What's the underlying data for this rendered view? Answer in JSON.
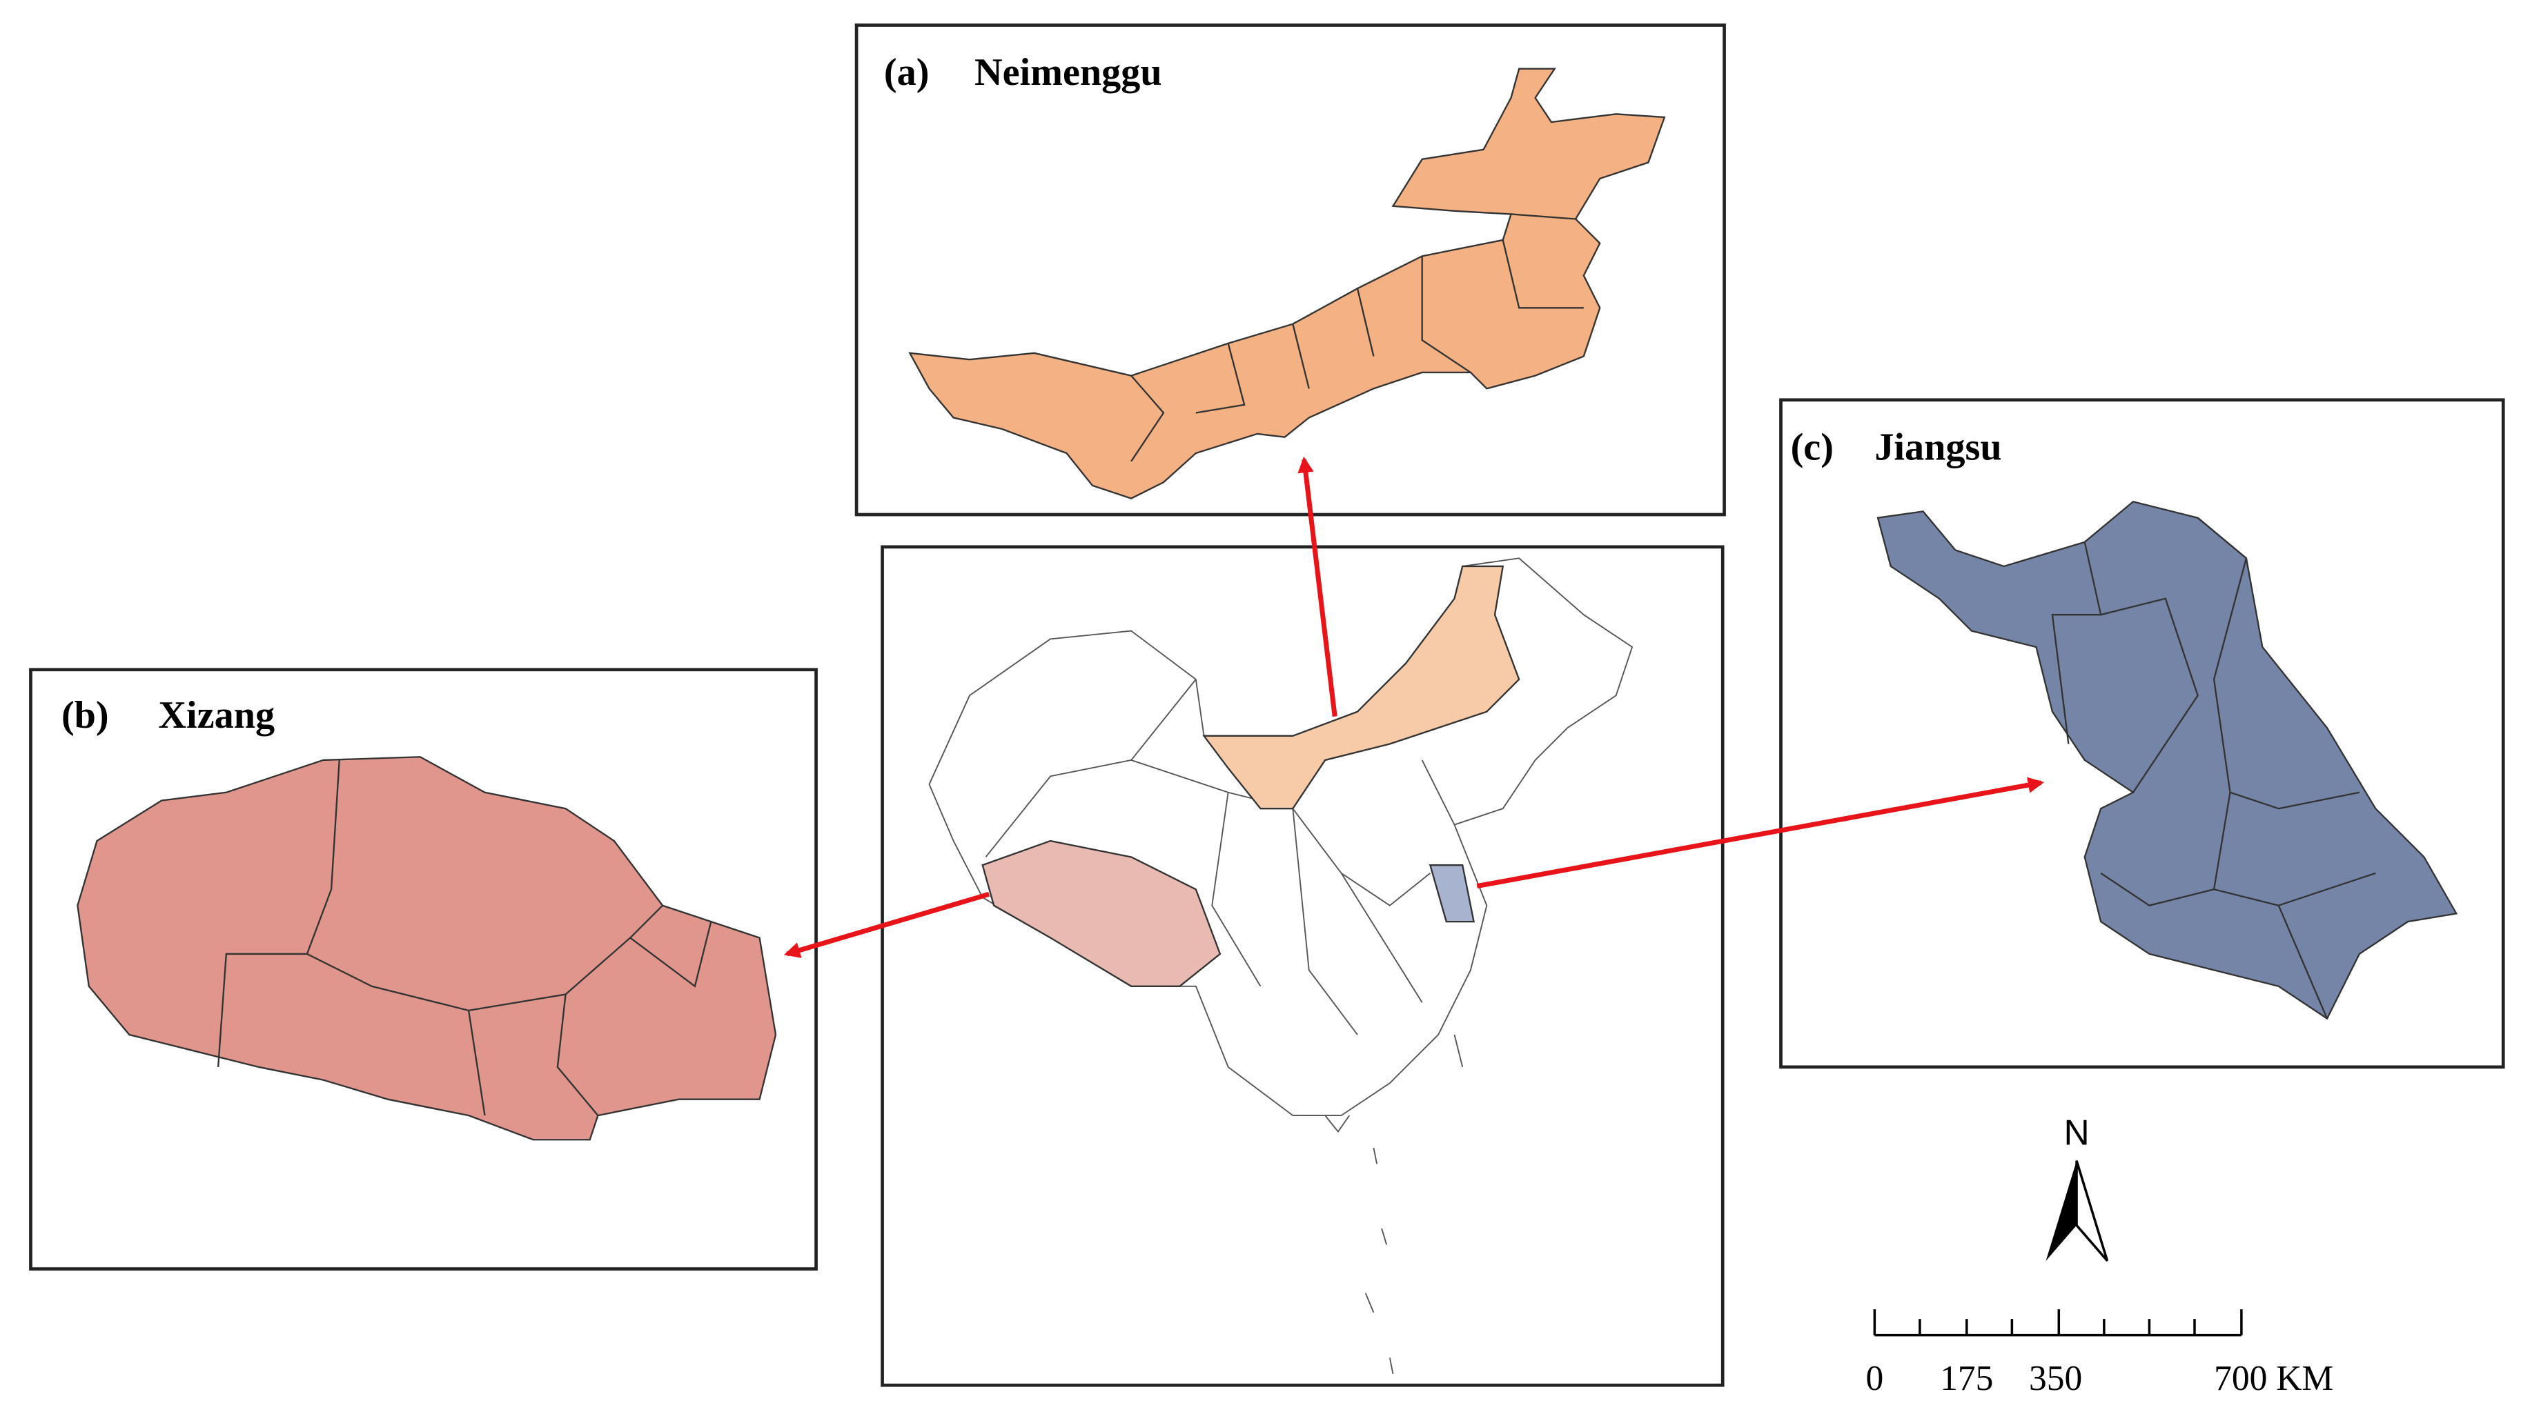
{
  "panels": [
    {
      "tag": "(a)",
      "name": "Neimenggu"
    },
    {
      "tag": "(b)",
      "name": "Xizang"
    },
    {
      "tag": "(c)",
      "name": "Jiangsu"
    }
  ],
  "north_arrow": "N",
  "scale_bar": {
    "labels": [
      "0",
      "175",
      "350",
      "700 KM"
    ]
  }
}
